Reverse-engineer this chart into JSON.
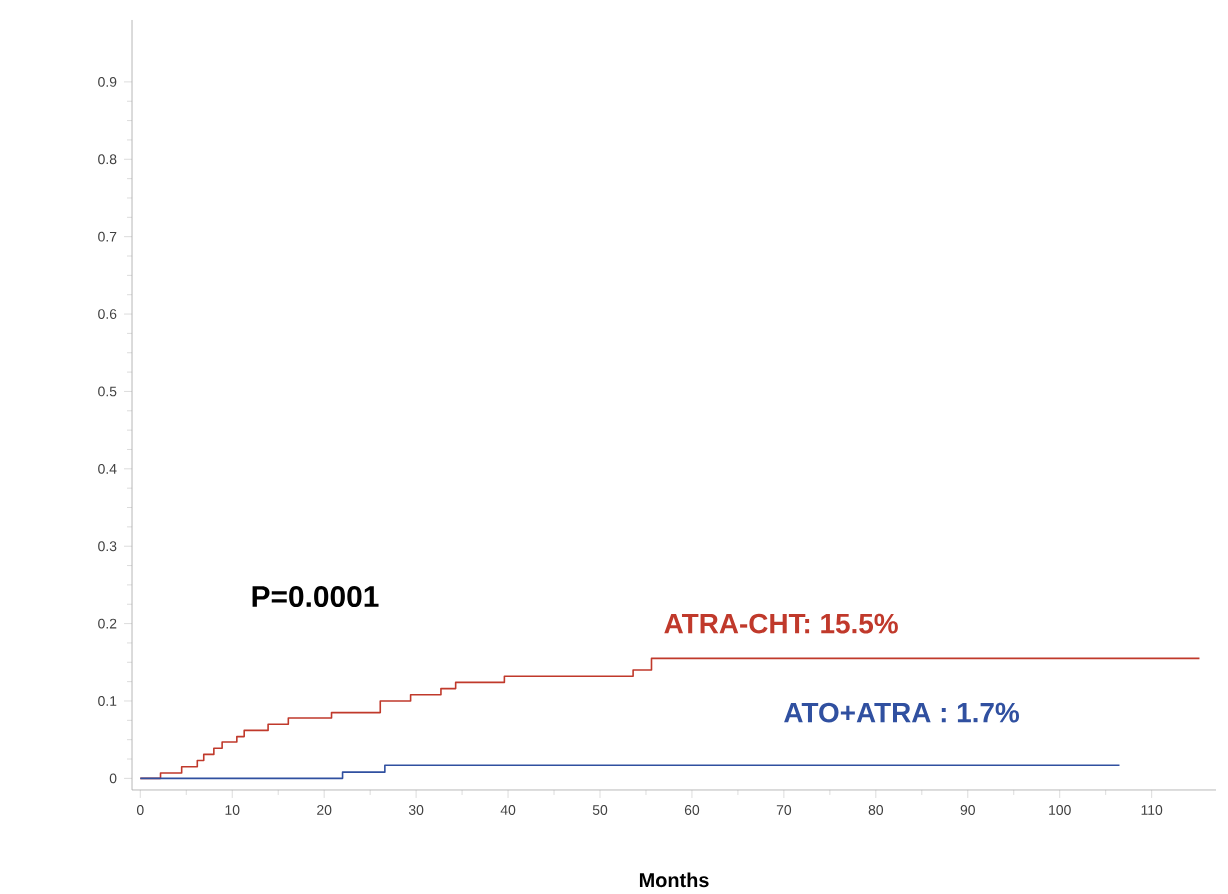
{
  "chart_data": {
    "type": "step",
    "xlabel": "Months",
    "annotations": [
      "P=0.0001"
    ],
    "x": [
      0,
      2.2,
      4.5,
      6.2,
      6.9,
      8,
      8.9,
      10.5,
      11.3,
      13.9,
      16.1,
      20.8,
      26.1,
      29.4,
      32.7,
      34.3,
      39.6,
      53.6,
      55.6,
      115.2
    ],
    "series": [
      {
        "name": "ATRA-CHT: 15.5%",
        "color": "#c0392b",
        "values": [
          0,
          0.007,
          0.015,
          0.023,
          0.031,
          0.039,
          0.047,
          0.054,
          0.062,
          0.07,
          0.078,
          0.085,
          0.1,
          0.108,
          0.116,
          0.124,
          0.132,
          0.14,
          0.155,
          0.155
        ]
      },
      {
        "name": "ATO+ATRA : 1.7%",
        "color": "#3050a0",
        "x": [
          0,
          22,
          26.6,
          106.5
        ],
        "values": [
          0,
          0.008,
          0.017,
          0.017
        ]
      }
    ],
    "xlim": [
      -0.9,
      117
    ],
    "ylim": [
      -0.015,
      0.98
    ],
    "xticks": [
      0,
      10,
      20,
      30,
      40,
      50,
      60,
      70,
      80,
      90,
      100,
      110
    ],
    "yticks": [
      0,
      0.1,
      0.2,
      0.3,
      0.4,
      0.5,
      0.6,
      0.7,
      0.8,
      0.9
    ],
    "marker": "none",
    "line_style": "solid"
  }
}
